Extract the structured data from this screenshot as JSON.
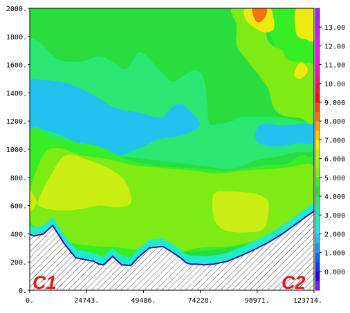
{
  "chart_data": {
    "type": "heatmap",
    "title": "",
    "xlabel": "",
    "ylabel": "",
    "x_ticks": [
      "0.",
      "24743.",
      "49486.",
      "74228.",
      "98971.",
      "123714."
    ],
    "x_tick_values": [
      0,
      24743,
      49486,
      74228,
      98971,
      123714
    ],
    "xlim": [
      0,
      123714
    ],
    "y_ticks": [
      "0.",
      "200.",
      "400.",
      "600.",
      "800.",
      "1000.",
      "1200.",
      "1400.",
      "1600.",
      "1800.",
      "2000."
    ],
    "y_tick_values": [
      0,
      200,
      400,
      600,
      800,
      1000,
      1200,
      1400,
      1600,
      1800,
      2000
    ],
    "ylim": [
      0,
      2000
    ],
    "colorbar": {
      "labels": [
        "0.000",
        "1.000",
        "2.000",
        "3.000",
        "4.000",
        "5.000",
        "6.000",
        "7.000",
        "8.000",
        "9.000",
        "10.00",
        "11.00",
        "12.00",
        "13.00"
      ],
      "min": -1,
      "max": 14,
      "step": 0.5,
      "colors": [
        "#7e1be8",
        "#2a06d6",
        "#0e37ee",
        "#0966f4",
        "#1798f0",
        "#22c2ef",
        "#1ee3ee",
        "#20eccc",
        "#22e7a4",
        "#29e872",
        "#2add3e",
        "#36ed26",
        "#7eeb14",
        "#a9ee11",
        "#cbee12",
        "#edea10",
        "#f6c90e",
        "#f2a00c",
        "#f0740b",
        "#ee4a0a",
        "#e8120f",
        "#ea1546",
        "#e81a7a",
        "#e619a6",
        "#e41bc8",
        "#e21ddc",
        "#d51ee8",
        "#c01fe8",
        "#b020e8",
        "#a021e8"
      ]
    },
    "terrain": {
      "description_visible": false,
      "x": [
        0,
        2000,
        6000,
        10000,
        15000,
        20000,
        24743,
        28000,
        30000,
        32000,
        36000,
        40000,
        44000,
        47000,
        52000,
        58000,
        62000,
        66000,
        68000,
        70000,
        72000,
        76000,
        80000,
        86000,
        92000,
        98000,
        104000,
        110000,
        116000,
        120000,
        123714
      ],
      "elev": [
        395,
        385,
        400,
        460,
        330,
        230,
        215,
        205,
        185,
        180,
        240,
        180,
        175,
        230,
        300,
        310,
        270,
        225,
        195,
        185,
        185,
        180,
        185,
        205,
        245,
        290,
        340,
        400,
        470,
        520,
        560
      ]
    },
    "regions": [
      {
        "level": 4.25,
        "pts": [
          [
            0,
            500
          ],
          [
            0,
            1870
          ],
          [
            4000,
            1890
          ],
          [
            12000,
            1810
          ],
          [
            25000,
            1820
          ],
          [
            33000,
            1780
          ],
          [
            38000,
            1830
          ],
          [
            44000,
            1920
          ],
          [
            50000,
            2000
          ],
          [
            58000,
            2000
          ],
          [
            60000,
            1900
          ],
          [
            62000,
            1800
          ],
          [
            70000,
            1720
          ],
          [
            76000,
            1820
          ],
          [
            80000,
            2000
          ],
          [
            92000,
            2000
          ],
          [
            94000,
            1900
          ],
          [
            100000,
            1780
          ],
          [
            106000,
            1700
          ],
          [
            118000,
            1620
          ],
          [
            123714,
            1600
          ],
          [
            123714,
            600
          ],
          [
            110000,
            450
          ],
          [
            90000,
            330
          ],
          [
            70000,
            280
          ],
          [
            40000,
            330
          ],
          [
            10000,
            450
          ]
        ]
      },
      {
        "level": 3.75,
        "pts": [
          [
            0,
            1380
          ],
          [
            0,
            1750
          ],
          [
            4000,
            1760
          ],
          [
            12000,
            1640
          ],
          [
            22000,
            1620
          ],
          [
            30000,
            1660
          ],
          [
            36000,
            1620
          ],
          [
            42000,
            1570
          ],
          [
            48000,
            1690
          ],
          [
            56000,
            1570
          ],
          [
            62000,
            1480
          ],
          [
            66000,
            1510
          ],
          [
            72000,
            1560
          ],
          [
            76000,
            1480
          ],
          [
            78000,
            1200
          ],
          [
            82000,
            1180
          ],
          [
            88000,
            1200
          ],
          [
            92000,
            1230
          ],
          [
            98000,
            1230
          ],
          [
            108000,
            1230
          ],
          [
            118000,
            1200
          ],
          [
            123714,
            1200
          ],
          [
            123714,
            1000
          ],
          [
            116000,
            980
          ],
          [
            108000,
            950
          ],
          [
            98000,
            920
          ],
          [
            88000,
            860
          ],
          [
            76000,
            880
          ],
          [
            66000,
            900
          ],
          [
            56000,
            920
          ],
          [
            46000,
            940
          ],
          [
            36000,
            960
          ],
          [
            30000,
            980
          ],
          [
            26000,
            1000
          ],
          [
            18000,
            1020
          ],
          [
            12000,
            1040
          ],
          [
            6000,
            1060
          ],
          [
            0,
            1080
          ]
        ]
      },
      {
        "level": 1.75,
        "pts": [
          [
            0,
            1160
          ],
          [
            0,
            1470
          ],
          [
            6000,
            1490
          ],
          [
            16000,
            1470
          ],
          [
            26000,
            1400
          ],
          [
            34000,
            1320
          ],
          [
            40000,
            1280
          ],
          [
            48000,
            1260
          ],
          [
            54000,
            1230
          ],
          [
            58000,
            1230
          ],
          [
            62000,
            1300
          ],
          [
            66000,
            1320
          ],
          [
            70000,
            1270
          ],
          [
            74000,
            1180
          ],
          [
            70000,
            1120
          ],
          [
            64000,
            1090
          ],
          [
            56000,
            1070
          ],
          [
            48000,
            1010
          ],
          [
            40000,
            960
          ],
          [
            36000,
            960
          ],
          [
            28000,
            990
          ],
          [
            20000,
            1050
          ],
          [
            12000,
            1110
          ],
          [
            6000,
            1140
          ]
        ]
      },
      {
        "level": 1.75,
        "pts": [
          [
            100000,
            1170
          ],
          [
            104000,
            1180
          ],
          [
            110000,
            1170
          ],
          [
            118000,
            1180
          ],
          [
            123714,
            1170
          ],
          [
            123714,
            1050
          ],
          [
            116000,
            1040
          ],
          [
            108000,
            1020
          ],
          [
            100000,
            1040
          ],
          [
            98000,
            1100
          ]
        ]
      },
      {
        "level": 4.75,
        "pts": [
          [
            0,
            260
          ],
          [
            0,
            1100
          ],
          [
            10000,
            1080
          ],
          [
            20000,
            1050
          ],
          [
            30000,
            1020
          ],
          [
            38000,
            960
          ],
          [
            46000,
            910
          ],
          [
            56000,
            880
          ],
          [
            66000,
            870
          ],
          [
            76000,
            860
          ],
          [
            86000,
            850
          ],
          [
            96000,
            870
          ],
          [
            104000,
            890
          ],
          [
            112000,
            900
          ],
          [
            118000,
            960
          ],
          [
            123714,
            1000
          ],
          [
            123714,
            1580
          ],
          [
            116000,
            1600
          ],
          [
            108000,
            1700
          ],
          [
            104000,
            1850
          ],
          [
            100000,
            2000
          ],
          [
            123714,
            2000
          ],
          [
            123714,
            600
          ],
          [
            110000,
            420
          ],
          [
            90000,
            310
          ],
          [
            60000,
            260
          ],
          [
            30000,
            230
          ]
        ]
      },
      {
        "level": 5.25,
        "pts": [
          [
            0,
            700
          ],
          [
            6000,
            960
          ],
          [
            12000,
            1010
          ],
          [
            22000,
            960
          ],
          [
            34000,
            930
          ],
          [
            44000,
            890
          ],
          [
            56000,
            870
          ],
          [
            70000,
            850
          ],
          [
            82000,
            830
          ],
          [
            94000,
            850
          ],
          [
            104000,
            860
          ],
          [
            112000,
            870
          ],
          [
            123714,
            880
          ],
          [
            123714,
            600
          ],
          [
            110000,
            420
          ],
          [
            90000,
            320
          ],
          [
            74000,
            300
          ],
          [
            60000,
            260
          ],
          [
            40000,
            300
          ],
          [
            20000,
            330
          ],
          [
            6000,
            420
          ],
          [
            0,
            500
          ]
        ]
      },
      {
        "level": 5.25,
        "pts": [
          [
            88000,
            2000
          ],
          [
            100000,
            2000
          ],
          [
            102000,
            1900
          ],
          [
            104000,
            1760
          ],
          [
            110000,
            1700
          ],
          [
            112000,
            1640
          ],
          [
            118000,
            1610
          ],
          [
            123714,
            1580
          ],
          [
            123714,
            1200
          ],
          [
            118000,
            1220
          ],
          [
            110000,
            1240
          ],
          [
            106000,
            1300
          ],
          [
            104000,
            1420
          ],
          [
            100000,
            1520
          ],
          [
            94000,
            1640
          ],
          [
            90000,
            1740
          ],
          [
            90000,
            1880
          ]
        ]
      },
      {
        "level": 6.25,
        "pts": [
          [
            4000,
            650
          ],
          [
            10000,
            840
          ],
          [
            16000,
            960
          ],
          [
            26000,
            920
          ],
          [
            36000,
            850
          ],
          [
            42000,
            760
          ],
          [
            44000,
            620
          ],
          [
            38000,
            590
          ],
          [
            30000,
            600
          ],
          [
            20000,
            570
          ],
          [
            10000,
            570
          ],
          [
            4000,
            600
          ]
        ]
      },
      {
        "level": 6.25,
        "pts": [
          [
            80000,
            680
          ],
          [
            86000,
            700
          ],
          [
            96000,
            690
          ],
          [
            102000,
            660
          ],
          [
            104000,
            600
          ],
          [
            102000,
            440
          ],
          [
            94000,
            410
          ],
          [
            86000,
            420
          ],
          [
            82000,
            460
          ],
          [
            80000,
            520
          ]
        ]
      },
      {
        "level": 6.25,
        "pts": [
          [
            0,
            560
          ],
          [
            3000,
            620
          ],
          [
            1500,
            680
          ],
          [
            0,
            700
          ]
        ]
      },
      {
        "level": 6.75,
        "pts": [
          [
            94000,
            2000
          ],
          [
            104000,
            2000
          ],
          [
            106000,
            1940
          ],
          [
            106000,
            1850
          ],
          [
            102000,
            1830
          ],
          [
            98000,
            1860
          ],
          [
            94000,
            1920
          ]
        ]
      },
      {
        "level": 6.75,
        "pts": [
          [
            116000,
            2000
          ],
          [
            123714,
            2000
          ],
          [
            123714,
            1780
          ],
          [
            120000,
            1780
          ],
          [
            116000,
            1820
          ]
        ]
      },
      {
        "level": 6.75,
        "pts": [
          [
            115000,
            1530
          ],
          [
            118000,
            1620
          ],
          [
            121000,
            1560
          ],
          [
            118000,
            1500
          ]
        ]
      },
      {
        "level": 8.25,
        "pts": [
          [
            97000,
            2000
          ],
          [
            103000,
            2000
          ],
          [
            102500,
            1940
          ],
          [
            100000,
            1900
          ],
          [
            98000,
            1920
          ]
        ]
      }
    ]
  }
}
